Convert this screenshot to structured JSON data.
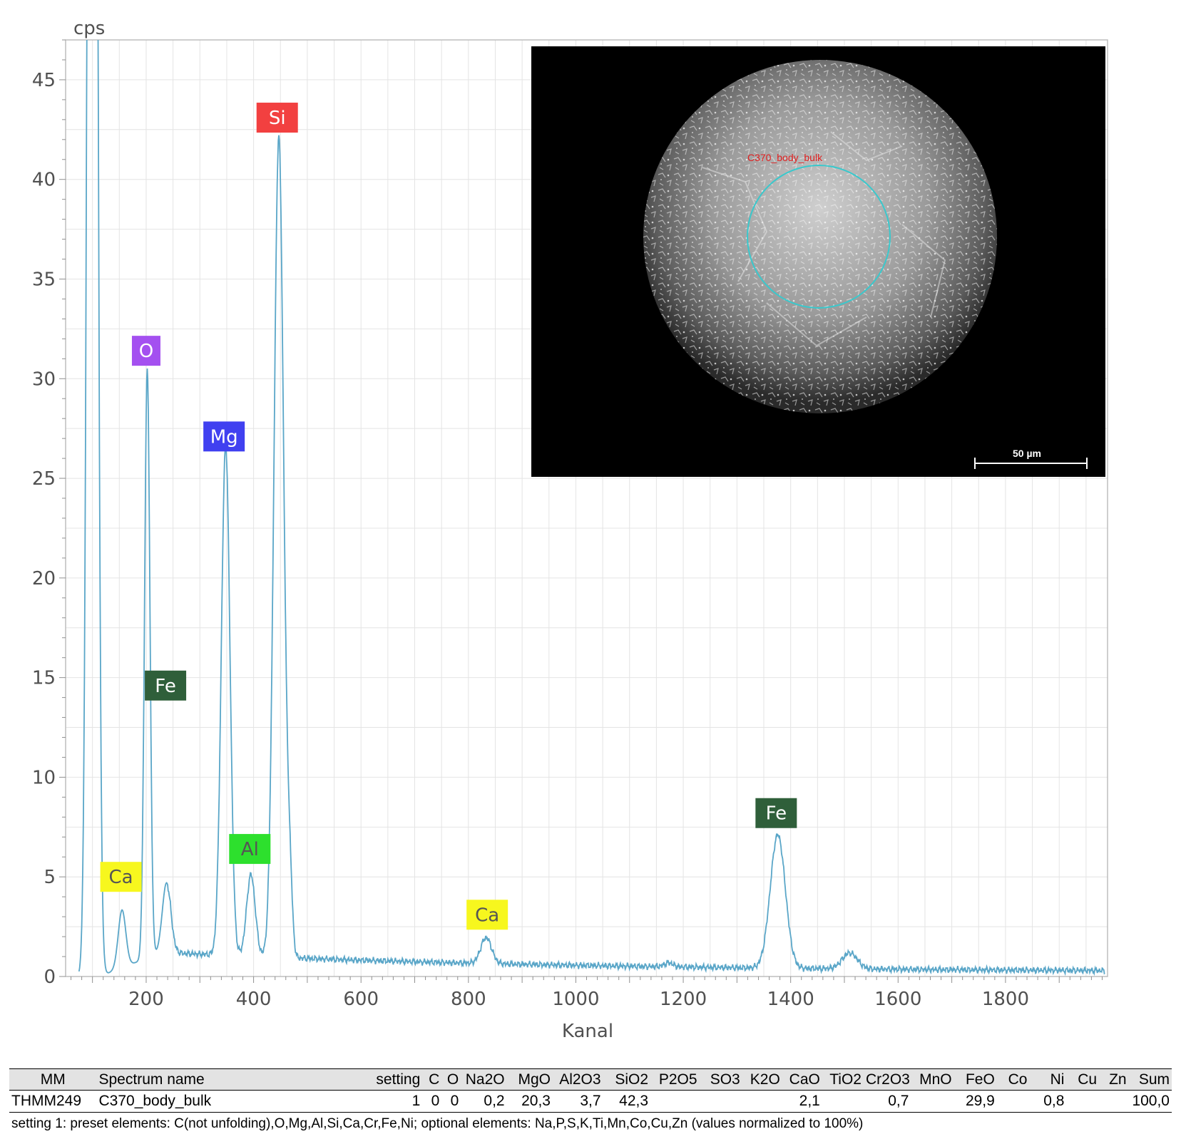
{
  "chart_data": {
    "type": "line",
    "ylabel": "cps",
    "xlabel": "Kanal",
    "xlim": [
      50,
      1990
    ],
    "ylim": [
      0,
      47
    ],
    "xticks": [
      200,
      400,
      600,
      800,
      1000,
      1200,
      1400,
      1600,
      1800
    ],
    "yticks": [
      0,
      5,
      10,
      15,
      20,
      25,
      30,
      35,
      40,
      45
    ],
    "grid": true,
    "line_color": "#5aa6c8",
    "background": {
      "baseline": 1.2,
      "background_end": 0.2
    },
    "peaks": [
      {
        "x": 100,
        "y": 150,
        "width": 7
      },
      {
        "x": 155,
        "y": 2.9,
        "width": 7
      },
      {
        "x": 202,
        "y": 29.6,
        "width": 5
      },
      {
        "x": 238,
        "y": 3.5,
        "width": 8
      },
      {
        "x": 348,
        "y": 25.6,
        "width": 8
      },
      {
        "x": 395,
        "y": 4.1,
        "width": 8
      },
      {
        "x": 447,
        "y": 41.2,
        "width": 9
      },
      {
        "x": 467,
        "y": 3.5,
        "width": 5
      },
      {
        "x": 833,
        "y": 1.3,
        "width": 10
      },
      {
        "x": 1173,
        "y": 0.2,
        "width": 8
      },
      {
        "x": 1376,
        "y": 6.7,
        "width": 14
      },
      {
        "x": 1510,
        "y": 0.8,
        "width": 14
      }
    ],
    "annotations": [
      {
        "text": "Si",
        "x": 444,
        "y": 43.1,
        "bg": "#f24040",
        "fg": "#ffffff"
      },
      {
        "text": "O",
        "x": 200,
        "y": 31.4,
        "bg": "#a450f0",
        "fg": "#ffffff"
      },
      {
        "text": "Mg",
        "x": 345,
        "y": 27.1,
        "bg": "#4040f0",
        "fg": "#ffffff"
      },
      {
        "text": "Fe",
        "x": 236,
        "y": 14.6,
        "bg": "#2f5f3a",
        "fg": "#ffffff"
      },
      {
        "text": "Ca",
        "x": 153,
        "y": 5.0,
        "bg": "#f7f71e",
        "fg": "#555555"
      },
      {
        "text": "Al",
        "x": 393,
        "y": 6.4,
        "bg": "#2de02d",
        "fg": "#555555"
      },
      {
        "text": "Ca",
        "x": 835,
        "y": 3.1,
        "bg": "#f7f71e",
        "fg": "#555555"
      },
      {
        "text": "Fe",
        "x": 1373,
        "y": 8.2,
        "bg": "#2f5f3a",
        "fg": "#ffffff"
      }
    ]
  },
  "inset": {
    "roi_label": "C370_body_bulk",
    "scale_bar_label": "50 µm"
  },
  "table": {
    "headers": [
      "MM",
      "Spectrum name",
      "setting",
      "C",
      "O",
      "Na2O",
      "MgO",
      "Al2O3",
      "SiO2",
      "P2O5",
      "SO3",
      "K2O",
      "CaO",
      "TiO2",
      "Cr2O3",
      "MnO",
      "FeO",
      "Co",
      "Ni",
      "Cu",
      "Zn",
      "Sum"
    ],
    "row": [
      "THMM249",
      "C370_body_bulk",
      "1",
      "0",
      "0",
      "0,2",
      "20,3",
      "3,7",
      "42,3",
      "",
      "",
      "",
      "2,1",
      "",
      "0,7",
      "",
      "29,9",
      "",
      "0,8",
      "",
      "",
      "100,0"
    ]
  },
  "footnote": "setting 1: preset elements: C(not unfolding),O,Mg,Al,Si,Ca,Cr,Fe,Ni; optional elements: Na,P,S,K,Ti,Mn,Co,Cu,Zn (values normalized to 100%)"
}
